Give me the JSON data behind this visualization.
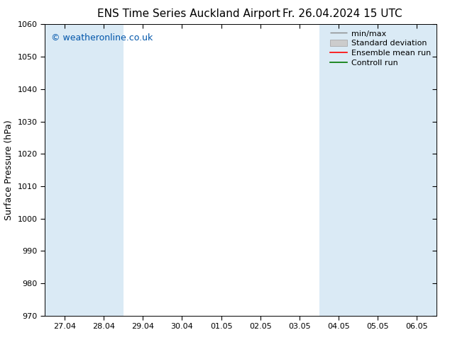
{
  "title_left": "ENS Time Series Auckland Airport",
  "title_right": "Fr. 26.04.2024 15 UTC",
  "ylabel": "Surface Pressure (hPa)",
  "ylim": [
    970,
    1060
  ],
  "yticks": [
    970,
    980,
    990,
    1000,
    1010,
    1020,
    1030,
    1040,
    1050,
    1060
  ],
  "xtick_labels": [
    "27.04",
    "28.04",
    "29.04",
    "30.04",
    "01.05",
    "02.05",
    "03.05",
    "04.05",
    "05.05",
    "06.05"
  ],
  "x_values": [
    0,
    1,
    2,
    3,
    4,
    5,
    6,
    7,
    8,
    9
  ],
  "watermark": "© weatheronline.co.uk",
  "watermark_color": "#0055aa",
  "bg_color": "#ffffff",
  "plot_bg_color": "#ffffff",
  "shaded_band_color": "#daeaf5",
  "shaded_x_starts": [
    0,
    1,
    7,
    8,
    9
  ],
  "legend_labels": [
    "min/max",
    "Standard deviation",
    "Ensemble mean run",
    "Controll run"
  ],
  "legend_colors_line": [
    "#999999",
    "#bbbbbb",
    "#ff0000",
    "#007700"
  ],
  "title_fontsize": 11,
  "tick_fontsize": 8,
  "ylabel_fontsize": 9,
  "watermark_fontsize": 9,
  "legend_fontsize": 8
}
